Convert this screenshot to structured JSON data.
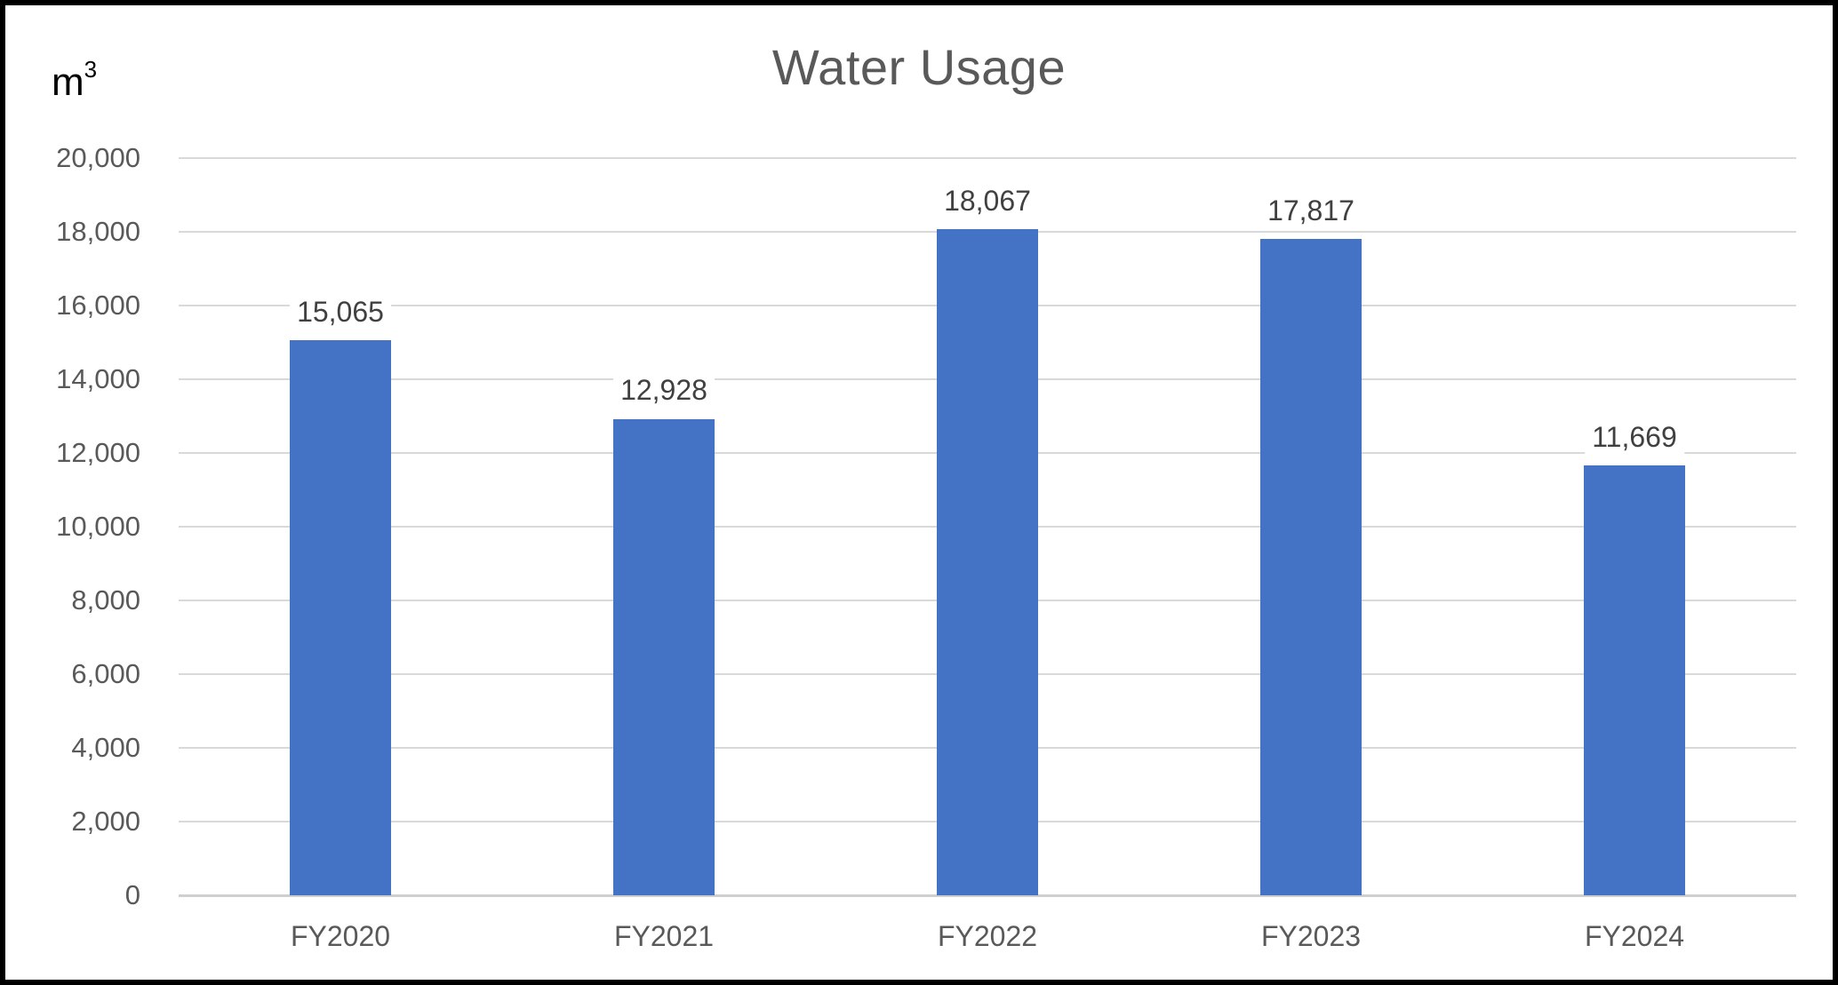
{
  "chart_data": {
    "type": "bar",
    "title": "Water Usage",
    "unit": {
      "base": "m",
      "exponent": "3"
    },
    "categories": [
      "FY2020",
      "FY2021",
      "FY2022",
      "FY2023",
      "FY2024"
    ],
    "values": [
      15065,
      12928,
      18067,
      17817,
      11669
    ],
    "value_labels": [
      "15,065",
      "12,928",
      "18,067",
      "17,817",
      "11,669"
    ],
    "xlabel": "",
    "ylabel": "m³",
    "ylim": [
      0,
      20000
    ],
    "y_tick_step": 2000,
    "y_tick_labels": [
      "0",
      "2,000",
      "4,000",
      "6,000",
      "8,000",
      "10,000",
      "12,000",
      "14,000",
      "16,000",
      "18,000",
      "20,000"
    ],
    "grid": true,
    "legend": "none",
    "colors": {
      "bar_fill": "#4472C4",
      "gridline": "#D9D9D9",
      "axis_line": "#CFCFCF",
      "title_text": "#595959",
      "tick_text": "#595959",
      "value_label_text": "#404040",
      "unit_text": "#000000",
      "frame_border": "#000000",
      "background": "#FFFFFF"
    }
  }
}
